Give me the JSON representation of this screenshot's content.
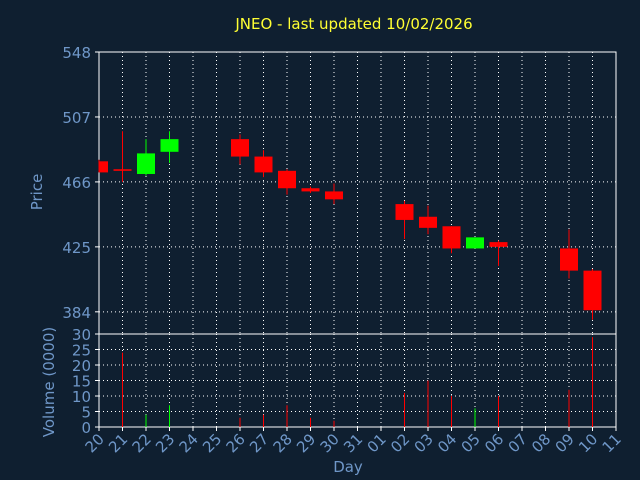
{
  "chart_data": [
    {
      "type": "candlestick",
      "title": "JNEO - last updated 10/02/2026",
      "ylabel": "Price",
      "ylim": [
        370,
        548
      ],
      "yticks": [
        548,
        507,
        466,
        425,
        384
      ],
      "x_ticklabels": [
        "20",
        "21",
        "22",
        "23",
        "24",
        "25",
        "26",
        "27",
        "28",
        "29",
        "30",
        "31",
        "01",
        "02",
        "03",
        "04",
        "05",
        "06",
        "07",
        "08",
        "09",
        "10",
        "11"
      ],
      "grid": true,
      "up_color": "#00ff00",
      "down_color": "#ff0000",
      "candles": [
        {
          "day": "20",
          "open": 479,
          "high": 480,
          "low": 472,
          "close": 472
        },
        {
          "day": "21",
          "open": 474,
          "high": 498,
          "low": 466,
          "close": 473
        },
        {
          "day": "22",
          "open": 471,
          "high": 493,
          "low": 470,
          "close": 484
        },
        {
          "day": "23",
          "open": 485,
          "high": 498,
          "low": 478,
          "close": 493
        },
        {
          "day": "26",
          "open": 493,
          "high": 496,
          "low": 477,
          "close": 482
        },
        {
          "day": "27",
          "open": 482,
          "high": 486,
          "low": 469,
          "close": 472
        },
        {
          "day": "28",
          "open": 473,
          "high": 474,
          "low": 458,
          "close": 462
        },
        {
          "day": "29",
          "open": 462,
          "high": 463,
          "low": 459,
          "close": 460
        },
        {
          "day": "30",
          "open": 460,
          "high": 465,
          "low": 452,
          "close": 455
        },
        {
          "day": "02",
          "open": 452,
          "high": 454,
          "low": 430,
          "close": 442
        },
        {
          "day": "03",
          "open": 444,
          "high": 451,
          "low": 433,
          "close": 437
        },
        {
          "day": "04",
          "open": 438,
          "high": 438,
          "low": 421,
          "close": 424
        },
        {
          "day": "05",
          "open": 424,
          "high": 431,
          "low": 424,
          "close": 431
        },
        {
          "day": "06",
          "open": 428,
          "high": 429,
          "low": 413,
          "close": 425
        },
        {
          "day": "09",
          "open": 424,
          "high": 436,
          "low": 405,
          "close": 410
        },
        {
          "day": "10",
          "open": 410,
          "high": 411,
          "low": 379,
          "close": 385
        }
      ]
    },
    {
      "type": "bar",
      "ylabel": "Volume (0000)",
      "xlabel": "Day",
      "ylim": [
        0,
        30
      ],
      "yticks": [
        0,
        5,
        10,
        15,
        20,
        25,
        30
      ],
      "x_ticklabels": [
        "20",
        "21",
        "22",
        "23",
        "24",
        "25",
        "26",
        "27",
        "28",
        "29",
        "30",
        "31",
        "01",
        "02",
        "03",
        "04",
        "05",
        "06",
        "07",
        "08",
        "09",
        "10",
        "11"
      ],
      "grid": true,
      "volumes": [
        {
          "day": "21",
          "value": 24,
          "color": "#ff0000"
        },
        {
          "day": "22",
          "value": 4,
          "color": "#00ff00"
        },
        {
          "day": "23",
          "value": 7,
          "color": "#00ff00"
        },
        {
          "day": "26",
          "value": 3,
          "color": "#ff0000"
        },
        {
          "day": "27",
          "value": 4,
          "color": "#ff0000"
        },
        {
          "day": "28",
          "value": 7,
          "color": "#ff0000"
        },
        {
          "day": "29",
          "value": 3,
          "color": "#ff0000"
        },
        {
          "day": "30",
          "value": 2,
          "color": "#ff0000"
        },
        {
          "day": "02",
          "value": 11,
          "color": "#ff0000"
        },
        {
          "day": "03",
          "value": 15,
          "color": "#ff0000"
        },
        {
          "day": "04",
          "value": 10,
          "color": "#ff0000"
        },
        {
          "day": "05",
          "value": 6,
          "color": "#00ff00"
        },
        {
          "day": "06",
          "value": 10,
          "color": "#ff0000"
        },
        {
          "day": "09",
          "value": 12,
          "color": "#ff0000"
        },
        {
          "day": "10",
          "value": 29,
          "color": "#ff0000"
        }
      ]
    }
  ]
}
